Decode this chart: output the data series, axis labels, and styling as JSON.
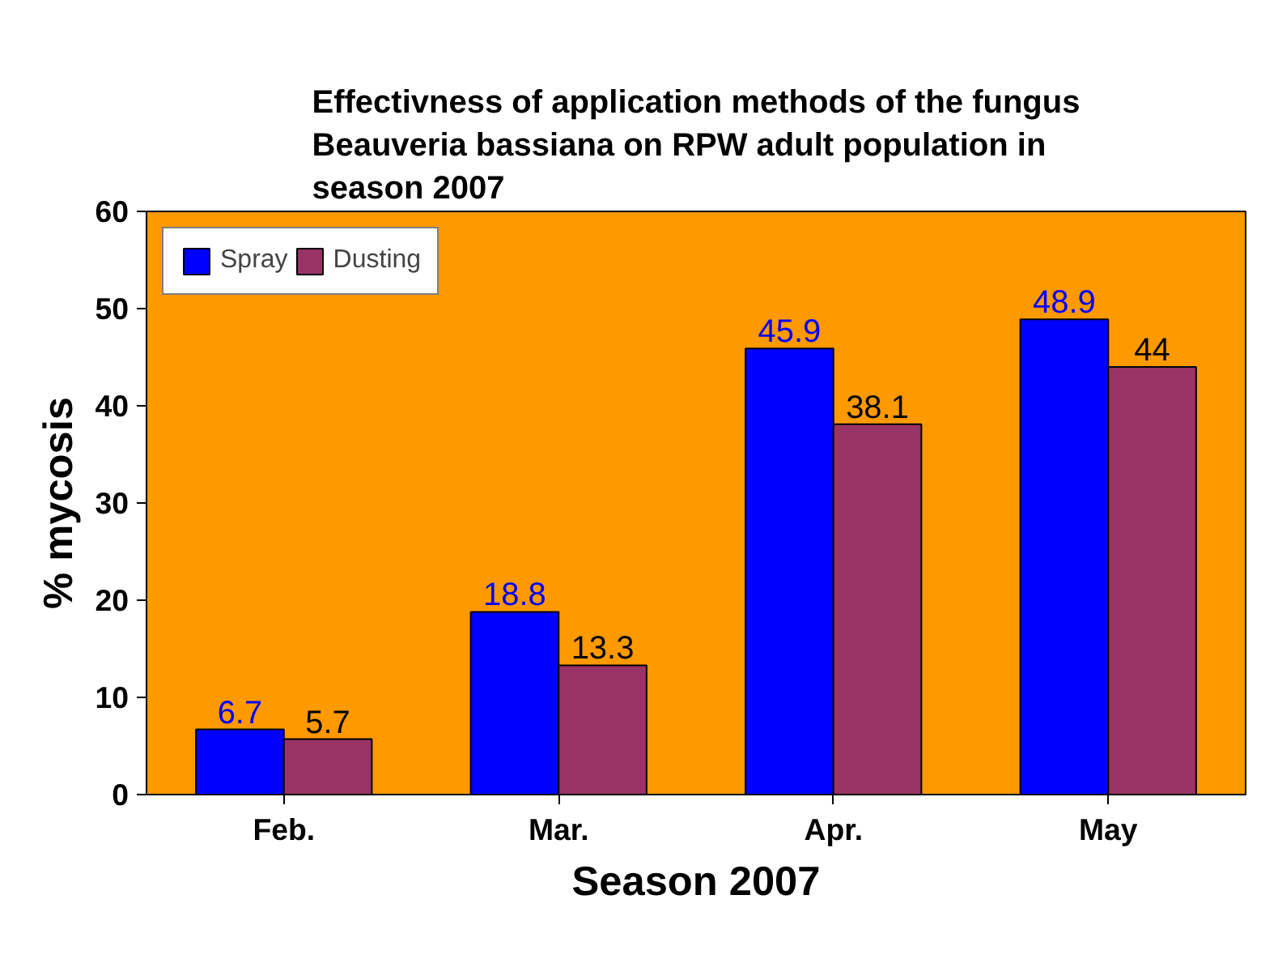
{
  "chart_data": {
    "type": "bar",
    "title": "Effectivness of application methods of the fungus\nBeauveria bassiana on RPW adult population in\nseason 2007",
    "xlabel": "Season 2007",
    "ylabel": "% mycosis",
    "categories": [
      "Feb.",
      "Mar.",
      "Apr.",
      "May"
    ],
    "series": [
      {
        "name": "Spray",
        "color": "#0000ff",
        "values": [
          6.7,
          18.8,
          45.9,
          48.9
        ]
      },
      {
        "name": "Dusting",
        "color": "#993366",
        "values": [
          5.7,
          13.3,
          38.1,
          44
        ]
      }
    ],
    "ylim": [
      0,
      60
    ],
    "yticks": [
      0,
      10,
      20,
      30,
      40,
      50,
      60
    ],
    "grid": false,
    "legend": "top left",
    "data_labels": true
  }
}
